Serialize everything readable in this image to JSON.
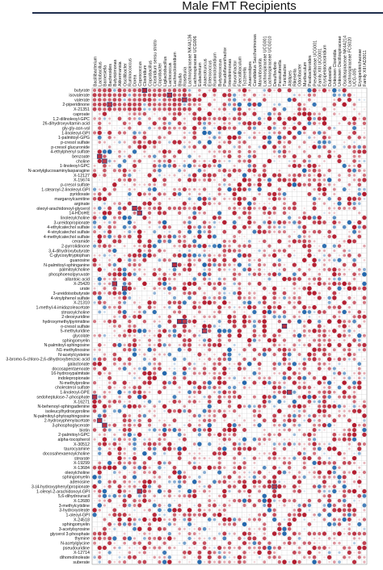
{
  "chart_data": {
    "type": "heatmap",
    "title": "Male FMT Recipients",
    "xlabel": "",
    "ylabel": "",
    "value_range": [
      -1,
      1
    ],
    "colors": {
      "negative": "#2166ac",
      "neutral": "#ffffff",
      "positive": "#b2182b",
      "frame": "#1f2d4d",
      "grid": "#c8c8c8",
      "highlight_box": "#1f3f7a",
      "text": "#111111"
    },
    "columns": [
      "Bacillibacterium",
      "Lactobacillus",
      "Barnesiella",
      "Bacteroides",
      "Butyricimonas",
      "Akkermansia",
      "Oscillibacter",
      "Ruminococcus",
      "Dorea",
      "Coprococcus",
      "Clostridium",
      "Coprobacillus",
      "Clostridium sensu stricto",
      "Coprobacter",
      "Ligilactobacillus",
      "Lactococcus",
      "Lachnoclostridium",
      "Blautia",
      "Roseburia",
      "Lachnospiraceae NK4A136",
      "Lachnospiraceae UCG006",
      "Eubacterium",
      "Anaerotruncus",
      "Enterococcus",
      "Ruminiclostridium",
      "Butyricicoccus",
      "Pseudoflavonifractor",
      "Intestinimonas",
      "Flavonifractor",
      "Faecalibaculum",
      "Tyzzerella",
      "Anaerostipes",
      "Candidatus Saccharimonas",
      "Marvinbryantia",
      "Lachnospiraceae UCG001",
      "Lachnospiraceae UCG010",
      "Desulfovibrio",
      "Parasutterella",
      "Turicibacter",
      "Alistipes",
      "Rikenella",
      "Odoribacter",
      "Muribaculum",
      "Parabacteroides",
      "Prevotellaceae UCG001",
      "Family XIII UCG001",
      "Erysipelatoclostridium",
      "Dubosiella",
      "Unknown Clostridia",
      "Unknown Oscillospiraceae",
      "Oscillospiraceae NK4A214",
      "Lachnospiraceae FCS020",
      "UCG-005",
      "Erysipelotrichaceae",
      "Family XIII AD3011"
    ],
    "rows": [
      "butyrate",
      "isovalerate",
      "valerate",
      "2-piperidinone",
      "X-21351",
      "caproate",
      "1,2-dilinoleoyl-GPC",
      "26-dihydroxyvitamin acid",
      "gly-gly-asn-val",
      "1-linoleoyl-GPI",
      "1-palmitoyl-GPG",
      "p-cresol sulfate",
      "p-cresol glucuronide",
      "4-ethylphenyl sulfate",
      "benzoate",
      "choline",
      "1-linoleoyl-GPC",
      "N-acetylglucosaminylasparagine",
      "X-12127",
      "X-15674",
      "p-cresol sulfate",
      "1-stearoyl-2-linoleoyl-GPI",
      "pyridoxate",
      "margaroylcarnitine",
      "arginate",
      "oleoyl-arachidonoyl-glycerol",
      "14-HDoHE",
      "linoleoylcholine",
      "3-ureidopropionate",
      "4-ethylcatechol sulfate",
      "4-vinylcatechol sulfate",
      "4-methylcatechol sulfate",
      "ceramide",
      "2-pyrrolidinone",
      "3,4-dihydroxybutyrate",
      "C-glycosyltryptophan",
      "guanosine",
      "N-palmitoyl-sphinganine",
      "palmitoylcholine",
      "phosphoenolpyruvate",
      "allantoic acid",
      "X-25420",
      "urate",
      "3-ureidoisobutyrate",
      "4-vinylphenol sulfate",
      "X-21310",
      "1-methyl-4-imidazoleacetate",
      "stearoylcholine",
      "2-deoxyuridine",
      "hydroxymethylpyrimidine",
      "o-cresol sulfate",
      "5-methyluridine",
      "glycolate",
      "sphingomyelin",
      "N-palmitoyl-sphingosine",
      "N1-methylinosine",
      "N-acetylcysteine",
      "3-bromo-5-chloro-2,6-dihydroxybenzoic acid",
      "galactonate",
      "docosapentaenoate",
      "16-hydroxypalmitate",
      "indolepropionate",
      "N-methylproline",
      "cholesterol sulfate",
      "1-linoleoyl-GPE",
      "sedoheptulose-7-phosphate",
      "X-16271",
      "N-behenoyl-sphingadienine",
      "isoleucylhydroxyproline",
      "N-palmitoyl-phytosphingosine",
      "2-hydroxyphenylacetate",
      "3-phosphoglycerate",
      "biotin",
      "2-palmitoyl-GPC",
      "alpha-tocopherol",
      "X-30512",
      "taurocyamine",
      "docosahexaenoylcholine",
      "stearate",
      "X-19299",
      "X-13684",
      "oleoylcholine",
      "sphingomyelin",
      "adenosine",
      "3-(4-hydroxyphenyl)propionate",
      "1-oleoyl-2-arachidonoyl-GPI",
      "5,6-dihydrouracil",
      "X-12680",
      "3-methylcytidine",
      "3-hydroxyoleate",
      "1-oleoyl-GPI",
      "X-24518",
      "sphingomyelin",
      "3-acetylsyrosine",
      "glycerol 3-phosphate",
      "thymine",
      "N-acetylglycine",
      "pseudouridine",
      "X-12714",
      "dihomolinoleate",
      "suberate"
    ],
    "highlights": [
      {
        "row": "butyrate",
        "column": "Clostridium",
        "value": 0.95
      },
      {
        "row": "isovalerate",
        "column": "Lactococcus",
        "value": 0.92
      },
      {
        "row": "valerate",
        "column": "Roseburia",
        "value": 0.9
      },
      {
        "row": "2-piperidinone",
        "column": "Bacteroides",
        "value": 0.88
      },
      {
        "row": "benzoate",
        "column": "Lactobacillus",
        "value": 0.9
      },
      {
        "row": "choline",
        "column": "Barnesiella",
        "value": 0.85
      },
      {
        "row": "oleoyl-arachidonoyl-glycerol",
        "column": "Dorea",
        "value": 0.9
      },
      {
        "row": "14-HDoHE",
        "column": "Coprococcus",
        "value": 0.88
      },
      {
        "row": "N-palmitoyl-sphinganine",
        "column": "Lachnoclostridium",
        "value": 0.92
      },
      {
        "row": "X-25420",
        "column": "Butyricimonas",
        "value": 0.9
      },
      {
        "row": "urate",
        "column": "Oscillibacter",
        "value": 0.88
      },
      {
        "row": "hydroxymethylpyrimidine",
        "column": "Blautia",
        "value": 0.93
      },
      {
        "row": "hydroxymethylpyrimidine",
        "column": "Roseburia",
        "value": 0.86
      },
      {
        "row": "o-cresol sulfate",
        "column": "Turicibacter",
        "value": 0.9
      },
      {
        "row": "5-methyluridine",
        "column": "Anaerotruncus",
        "value": 0.84
      },
      {
        "row": "1-linoleoyl-GPE",
        "column": "Alistipes",
        "value": 0.87
      },
      {
        "row": "sedoheptulose-7-phosphate",
        "column": "Bacillibacterium",
        "value": 0.9
      },
      {
        "row": "2-hydroxyphenylacetate",
        "column": "Lactobacillus",
        "value": 0.9
      },
      {
        "row": "3-phosphoglycerate",
        "column": "Barnesiella",
        "value": 0.89
      },
      {
        "row": "1-oleoyl-2-arachidonoyl-GPI",
        "column": "Coprococcus",
        "value": 0.91
      },
      {
        "row": "3-(4-hydroxyphenyl)propionate",
        "column": "Desulfovibrio",
        "value": 0.88
      }
    ],
    "dense_block": {
      "rows": [
        "butyrate",
        "isovalerate",
        "valerate",
        "2-piperidinone",
        "X-21351"
      ],
      "columns": [
        "Bacillibacterium",
        "Lactobacillus",
        "Barnesiella",
        "Bacteroides",
        "Butyricimonas",
        "Akkermansia",
        "Oscillibacter",
        "Ruminococcus",
        "Dorea",
        "Coprococcus",
        "Clostridium",
        "Coprobacillus",
        "Clostridium sensu stricto",
        "Coprobacter",
        "Ligilactobacillus",
        "Lactococcus",
        "Lachnoclostridium",
        "Blautia",
        "Roseburia",
        "Lachnospiraceae NK4A136"
      ],
      "value": 0.85
    }
  }
}
